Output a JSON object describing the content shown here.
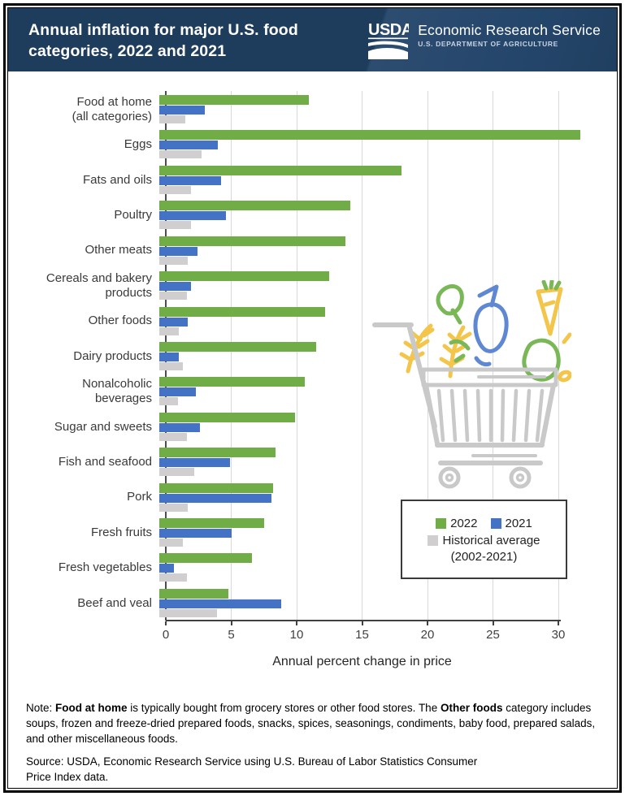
{
  "header": {
    "title_line1": "Annual inflation for major U.S. food",
    "title_line2": "categories, 2022 and 2021",
    "logo": {
      "usda": "USDA",
      "agency": "Economic Research Service",
      "department": "U.S. DEPARTMENT OF AGRICULTURE"
    }
  },
  "chart_data": {
    "type": "bar",
    "orientation": "horizontal",
    "title": "Annual inflation for major U.S. food categories, 2022 and 2021",
    "xlabel": "Annual percent change in price",
    "xticks": [
      0,
      5,
      10,
      15,
      20,
      25,
      30
    ],
    "xlim": [
      0,
      33
    ],
    "grid": "vertical",
    "legend_position": "inside lower right",
    "categories": [
      "Food at home\n(all categories)",
      "Eggs",
      "Fats and oils",
      "Poultry",
      "Other meats",
      "Cereals and bakery\nproducts",
      "Other foods",
      "Dairy products",
      "Nonalcoholic\nbeverages",
      "Sugar and sweets",
      "Fish and seafood",
      "Pork",
      "Fresh fruits",
      "Fresh vegetables",
      "Beef and veal"
    ],
    "series": [
      {
        "name": "2022",
        "color": "#70AD47",
        "values": [
          11.4,
          32.2,
          18.5,
          14.6,
          14.2,
          13.0,
          12.7,
          12.0,
          11.1,
          10.4,
          8.9,
          8.7,
          8.0,
          7.1,
          5.3
        ]
      },
      {
        "name": "2021",
        "color": "#4472C4",
        "values": [
          3.5,
          4.5,
          4.7,
          5.1,
          2.9,
          2.4,
          2.2,
          1.5,
          2.8,
          3.1,
          5.4,
          8.6,
          5.5,
          1.1,
          9.3
        ]
      },
      {
        "name": "Historical average (2002-2021)",
        "color": "#D0CECE",
        "values": [
          2.0,
          3.2,
          2.4,
          2.4,
          2.2,
          2.1,
          1.5,
          1.8,
          1.4,
          2.1,
          2.7,
          2.2,
          1.8,
          2.1,
          4.4
        ]
      }
    ],
    "legend": {
      "entry1": "2022",
      "entry2": "2021",
      "entry3_line1": "Historical average",
      "entry3_line2": "(2002-2021)"
    }
  },
  "notes": {
    "note_parts": [
      {
        "text": "Note: ",
        "bold": false
      },
      {
        "text": "Food at home",
        "bold": true
      },
      {
        "text": " is typically bought from grocery stores or other food stores. The ",
        "bold": false
      },
      {
        "text": "Other foods",
        "bold": true
      },
      {
        "text": " category includes soups, frozen and freeze-dried prepared foods, snacks, spices, seasonings, condiments, baby food, prepared salads, and other miscellaneous foods.",
        "bold": false
      }
    ],
    "source": "Source: USDA, Economic Research Service using U.S. Bureau of Labor Statistics Consumer Price Index data."
  },
  "colors": {
    "header_bg": "#1e3d5d",
    "bar_2022": "#70AD47",
    "bar_2021": "#4472C4",
    "bar_hist": "#D0CECE",
    "gridline": "#d9d9d9",
    "axis": "#404040",
    "cart_gray": "#c9c9c9",
    "cart_green": "#79b757",
    "cart_yellow": "#f3c64b",
    "cart_blue": "#5f88d2"
  }
}
